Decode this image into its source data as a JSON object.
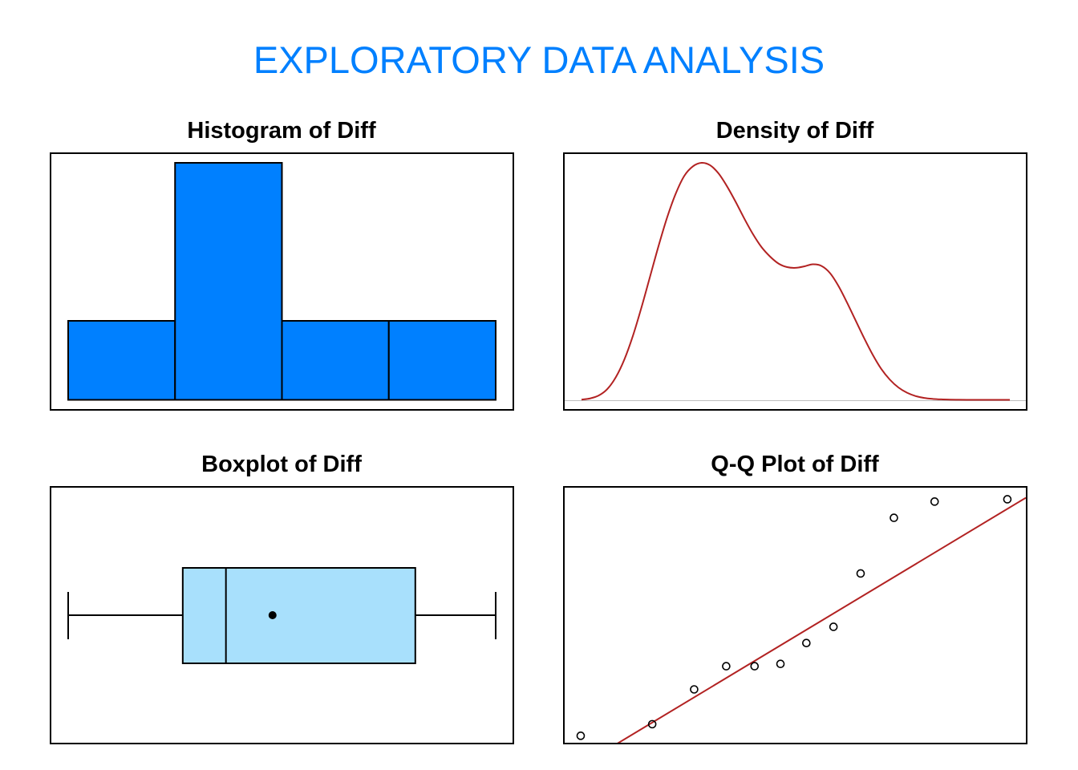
{
  "title": "EXPLORATORY  DATA  ANALYSIS",
  "colors": {
    "title": "#0080FF",
    "histogram_fill": "#0080FF",
    "box_fill": "#A8E0FC",
    "density_line": "#B22222",
    "qq_line": "#B22222",
    "frame": "#000000",
    "baseline": "#BEBEBE"
  },
  "chart_data": [
    {
      "type": "bar",
      "title": "Histogram of Diff",
      "xlabel": "",
      "ylabel": "",
      "bins": [
        [
          0,
          1
        ],
        [
          1,
          2
        ],
        [
          2,
          3
        ],
        [
          3,
          4
        ]
      ],
      "values": [
        2,
        6,
        2,
        2
      ],
      "ylim": [
        0,
        6
      ],
      "grid": false,
      "axes_shown": false
    },
    {
      "type": "line",
      "title": "Density of Diff",
      "xlabel": "",
      "ylabel": "",
      "x": [
        0,
        2,
        4,
        6,
        8,
        10,
        12,
        14,
        16,
        18,
        20,
        22,
        24,
        26,
        28,
        30,
        32,
        34,
        36,
        38,
        40,
        42,
        44,
        46,
        48,
        50,
        52,
        54,
        56,
        58,
        60,
        62,
        64,
        66,
        68,
        70,
        72,
        74,
        76,
        78,
        80,
        82,
        84,
        86,
        88,
        90,
        92,
        94,
        96,
        98,
        100
      ],
      "y": [
        0.001,
        0.006,
        0.018,
        0.045,
        0.095,
        0.17,
        0.27,
        0.39,
        0.52,
        0.65,
        0.77,
        0.87,
        0.945,
        0.985,
        1.0,
        0.99,
        0.955,
        0.9,
        0.835,
        0.765,
        0.7,
        0.645,
        0.605,
        0.575,
        0.56,
        0.557,
        0.563,
        0.572,
        0.565,
        0.535,
        0.48,
        0.41,
        0.335,
        0.26,
        0.19,
        0.13,
        0.085,
        0.052,
        0.03,
        0.016,
        0.008,
        0.004,
        0.002,
        0.001,
        0.0005,
        0.0002,
        0.0001,
        5e-05,
        2e-05,
        1e-05,
        0.0
      ],
      "xlim": [
        0,
        100
      ],
      "ylim": [
        0,
        1
      ],
      "grid": false,
      "axes_shown": false
    },
    {
      "type": "box",
      "title": "Boxplot of Diff",
      "xlabel": "",
      "ylabel": "",
      "min": 0,
      "q1": 26.8,
      "median": 36.9,
      "q3": 81.2,
      "max": 100,
      "mean": 47.8,
      "xlim": [
        0,
        100
      ],
      "grid": false,
      "axes_shown": false
    },
    {
      "type": "scatter",
      "title": "Q-Q Plot of Diff",
      "xlabel": "",
      "ylabel": "",
      "points": [
        {
          "theoretical": -1.73,
          "sample": -0.05
        },
        {
          "theoretical": -1.15,
          "sample": 0.0
        },
        {
          "theoretical": -0.81,
          "sample": 0.15
        },
        {
          "theoretical": -0.55,
          "sample": 0.25
        },
        {
          "theoretical": -0.32,
          "sample": 0.25
        },
        {
          "theoretical": -0.11,
          "sample": 0.26
        },
        {
          "theoretical": 0.1,
          "sample": 0.35
        },
        {
          "theoretical": 0.32,
          "sample": 0.42
        },
        {
          "theoretical": 0.54,
          "sample": 0.65
        },
        {
          "theoretical": 0.81,
          "sample": 0.89
        },
        {
          "theoretical": 1.14,
          "sample": 0.96
        },
        {
          "theoretical": 1.73,
          "sample": 0.97
        }
      ],
      "reference_line": {
        "intercept": 0.375,
        "slope": 0.32
      },
      "xlim": [
        -1.86,
        1.88
      ],
      "ylim": [
        -0.08,
        1.02
      ],
      "grid": false,
      "axes_shown": false
    }
  ]
}
